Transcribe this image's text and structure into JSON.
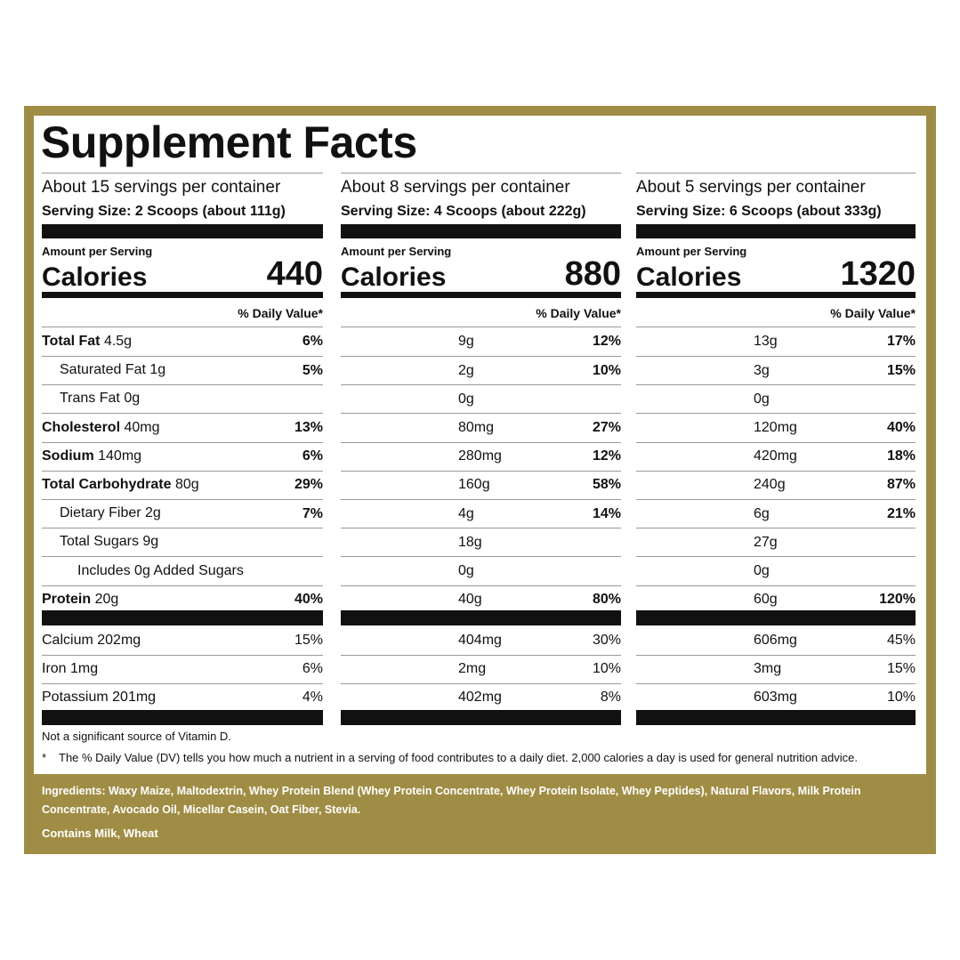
{
  "title": "Supplement Facts",
  "nutrients": [
    {
      "name": "Total Fat",
      "bold": true,
      "indent": 0
    },
    {
      "name": "Saturated Fat",
      "bold": false,
      "indent": 1
    },
    {
      "name": "Trans Fat",
      "bold": false,
      "indent": 1
    },
    {
      "name": "Cholesterol",
      "bold": true,
      "indent": 0
    },
    {
      "name": "Sodium",
      "bold": true,
      "indent": 0
    },
    {
      "name": "Total Carbohydrate",
      "bold": true,
      "indent": 0
    },
    {
      "name": "Dietary Fiber",
      "bold": false,
      "indent": 1
    },
    {
      "name": "Total Sugars",
      "bold": false,
      "indent": 1
    },
    {
      "name": "Includes",
      "suffix": "Added Sugars",
      "bold": false,
      "indent": 2
    },
    {
      "name": "Protein",
      "bold": true,
      "indent": 0
    }
  ],
  "minerals": [
    "Calcium",
    "Iron",
    "Potassium"
  ],
  "panels": [
    {
      "servings": "About 15 servings per container",
      "serving_size": "Serving Size: 2 Scoops (about 111g)",
      "amount_per_serving": "Amount per Serving",
      "calories_label": "Calories",
      "calories": "440",
      "dv_header": "% Daily Value*",
      "amounts": [
        "4.5g",
        "1g",
        "0g",
        "40mg",
        "140mg",
        "80g",
        "2g",
        "9g",
        "0g",
        "20g"
      ],
      "dv": [
        "6%",
        "5%",
        null,
        "13%",
        "6%",
        "29%",
        "7%",
        null,
        null,
        "40%"
      ],
      "mineral_amounts": [
        "202mg",
        "1mg",
        "201mg"
      ],
      "mineral_dv": [
        "15%",
        "6%",
        "4%"
      ]
    },
    {
      "servings": "About 8 servings per container",
      "serving_size": "Serving Size: 4 Scoops (about 222g)",
      "amount_per_serving": "Amount per Serving",
      "calories_label": "Calories",
      "calories": "880",
      "dv_header": "% Daily Value*",
      "amounts": [
        "9g",
        "2g",
        "0g",
        "80mg",
        "280mg",
        "160g",
        "4g",
        "18g",
        "0g",
        "40g"
      ],
      "dv": [
        "12%",
        "10%",
        null,
        "27%",
        "12%",
        "58%",
        "14%",
        null,
        null,
        "80%"
      ],
      "mineral_amounts": [
        "404mg",
        "2mg",
        "402mg"
      ],
      "mineral_dv": [
        "30%",
        "10%",
        "8%"
      ]
    },
    {
      "servings": "About 5 servings per container",
      "serving_size": "Serving Size: 6 Scoops (about 333g)",
      "amount_per_serving": "Amount per Serving",
      "calories_label": "Calories",
      "calories": "1320",
      "dv_header": "% Daily Value*",
      "amounts": [
        "13g",
        "3g",
        "0g",
        "120mg",
        "420mg",
        "240g",
        "6g",
        "27g",
        "0g",
        "60g"
      ],
      "dv": [
        "17%",
        "15%",
        null,
        "40%",
        "18%",
        "87%",
        "21%",
        null,
        null,
        "120%"
      ],
      "mineral_amounts": [
        "606mg",
        "3mg",
        "603mg"
      ],
      "mineral_dv": [
        "45%",
        "15%",
        "10%"
      ]
    }
  ],
  "footnote": "Not a significant source of Vitamin D.",
  "dv_note_symbol": "*",
  "dv_note": "The % Daily Value (DV) tells you how much a nutrient in a serving of food contributes to a daily diet. 2,000 calories a day is used for general nutrition advice.",
  "ingredients_label": "Ingredients",
  "ingredients": ": Waxy Maize, Maltodextrin, Whey Protein Blend (Whey Protein Concentrate, Whey Protein Isolate, Whey Peptides), Natural Flavors, Milk Protein Concentrate, Avocado Oil, Micellar Casein, Oat Fiber, Stevia.",
  "allergens": "Contains Milk, Wheat"
}
